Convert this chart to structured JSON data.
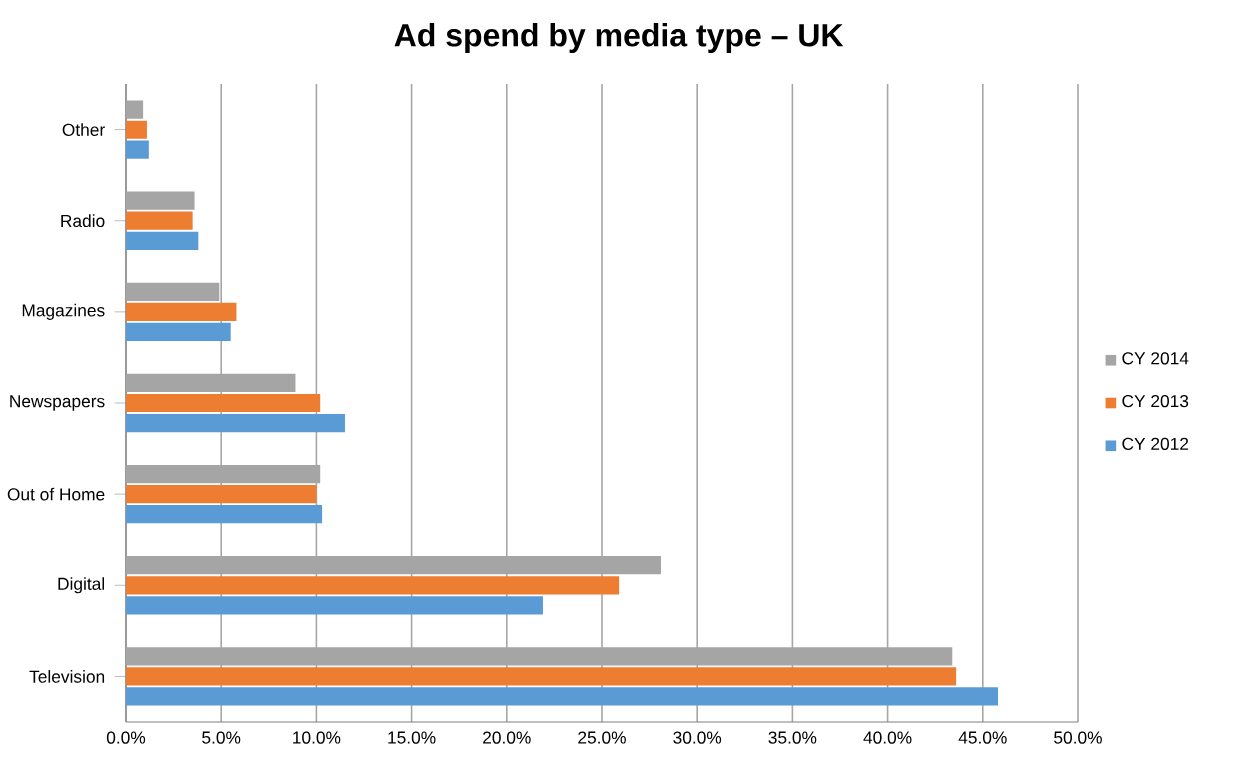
{
  "chart_data": {
    "type": "bar",
    "orientation": "horizontal",
    "title": "Ad spend by media type – UK",
    "categories": [
      "Other",
      "Radio",
      "Magazines",
      "Newspapers",
      "Out of Home",
      "Digital",
      "Television"
    ],
    "series": [
      {
        "name": "CY 2014",
        "color": "#a5a5a5",
        "values": [
          0.9,
          3.6,
          4.9,
          8.9,
          10.2,
          28.1,
          43.4
        ]
      },
      {
        "name": "CY 2013",
        "color": "#ed7d31",
        "values": [
          1.1,
          3.5,
          5.8,
          10.2,
          10.0,
          25.9,
          43.6
        ]
      },
      {
        "name": "CY 2012",
        "color": "#5b9bd5",
        "values": [
          1.2,
          3.8,
          5.5,
          11.5,
          10.3,
          21.9,
          45.8
        ]
      }
    ],
    "xlim": [
      0,
      50
    ],
    "xticks": [
      {
        "value": 0,
        "label": "0.0%"
      },
      {
        "value": 5,
        "label": "5.0%"
      },
      {
        "value": 10,
        "label": "10.0%"
      },
      {
        "value": 15,
        "label": "15.0%"
      },
      {
        "value": 20,
        "label": "20.0%"
      },
      {
        "value": 25,
        "label": "25.0%"
      },
      {
        "value": 30,
        "label": "30.0%"
      },
      {
        "value": 35,
        "label": "35.0%"
      },
      {
        "value": 40,
        "label": "40.0%"
      },
      {
        "value": 45,
        "label": "45.0%"
      },
      {
        "value": 50,
        "label": "50.0%"
      }
    ],
    "grid": "x",
    "legend": "right"
  }
}
